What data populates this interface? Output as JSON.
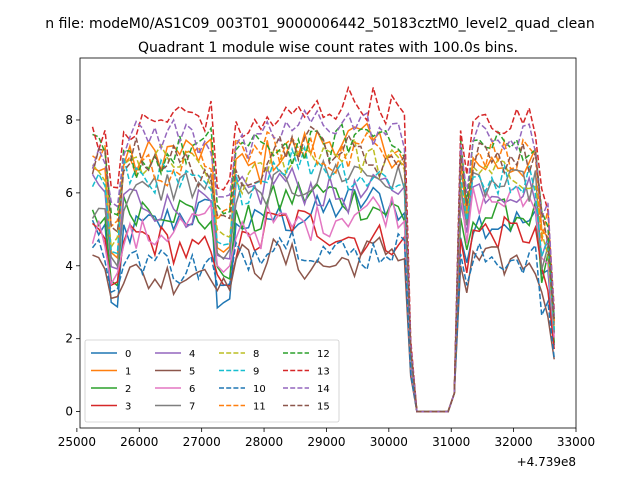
{
  "chart_data": {
    "type": "line",
    "suptitle": "n file: modeM0/AS1C09_003T01_9000006442_50183cztM0_level2_quad_clean",
    "title": "Quadrant 1 module wise count rates with 100.0s bins.",
    "xlabel": "",
    "ylabel": "",
    "x_offset_label": "+4.739e8",
    "xlim": [
      25050,
      33000
    ],
    "ylim": [
      -0.45,
      9.7
    ],
    "x_ticks": [
      25000,
      26000,
      27000,
      28000,
      29000,
      30000,
      31000,
      32000,
      33000
    ],
    "x_tick_labels": [
      "25000",
      "26000",
      "27000",
      "28000",
      "29000",
      "30000",
      "31000",
      "32000",
      "33000"
    ],
    "y_ticks": [
      0,
      2,
      4,
      6,
      8
    ],
    "y_tick_labels": [
      "0",
      "2",
      "4",
      "6",
      "8"
    ],
    "legend": {
      "placement": "lower-left",
      "columns": 4
    },
    "series": [
      {
        "name": "0",
        "color": "#1f77b4",
        "dash": "solid",
        "level": 5.2,
        "dip": 2.8,
        "late": 5.2
      },
      {
        "name": "1",
        "color": "#ff7f0e",
        "dash": "solid",
        "level": 6.9,
        "dip": 4.3,
        "late": 6.8
      },
      {
        "name": "2",
        "color": "#2ca02c",
        "dash": "solid",
        "level": 5.4,
        "dip": 3.6,
        "late": 5.4
      },
      {
        "name": "3",
        "color": "#d62728",
        "dash": "solid",
        "level": 4.6,
        "dip": 3.4,
        "late": 4.9
      },
      {
        "name": "4",
        "color": "#9467bd",
        "dash": "solid",
        "level": 5.8,
        "dip": 3.9,
        "late": 6.1
      },
      {
        "name": "5",
        "color": "#8c564b",
        "dash": "solid",
        "level": 3.9,
        "dip": 3.3,
        "late": 4.1
      },
      {
        "name": "6",
        "color": "#e377c2",
        "dash": "solid",
        "level": 5.0,
        "dip": 3.7,
        "late": 5.8
      },
      {
        "name": "7",
        "color": "#7f7f7f",
        "dash": "solid",
        "level": 6.0,
        "dip": 4.1,
        "late": 6.2
      },
      {
        "name": "8",
        "color": "#bcbd22",
        "dash": "dashed",
        "level": 6.6,
        "dip": 4.6,
        "late": 6.5
      },
      {
        "name": "9",
        "color": "#17becf",
        "dash": "dashed",
        "level": 6.3,
        "dip": 4.3,
        "late": 6.4
      },
      {
        "name": "10",
        "color": "#1f77b4",
        "dash": "dashed",
        "level": 4.2,
        "dip": 3.2,
        "late": 4.2
      },
      {
        "name": "11",
        "color": "#ff7f0e",
        "dash": "dashed",
        "level": 6.9,
        "dip": 5.2,
        "late": 7.1
      },
      {
        "name": "12",
        "color": "#2ca02c",
        "dash": "dashed",
        "level": 7.1,
        "dip": 5.3,
        "late": 7.3
      },
      {
        "name": "13",
        "color": "#d62728",
        "dash": "dashed",
        "level": 7.9,
        "dip": 6.0,
        "late": 8.0
      },
      {
        "name": "14",
        "color": "#9467bd",
        "dash": "dashed",
        "level": 7.4,
        "dip": 5.8,
        "late": 7.5
      },
      {
        "name": "15",
        "color": "#8c564b",
        "dash": "dashed",
        "level": 6.8,
        "dip": 5.0,
        "late": 7.0
      }
    ]
  }
}
